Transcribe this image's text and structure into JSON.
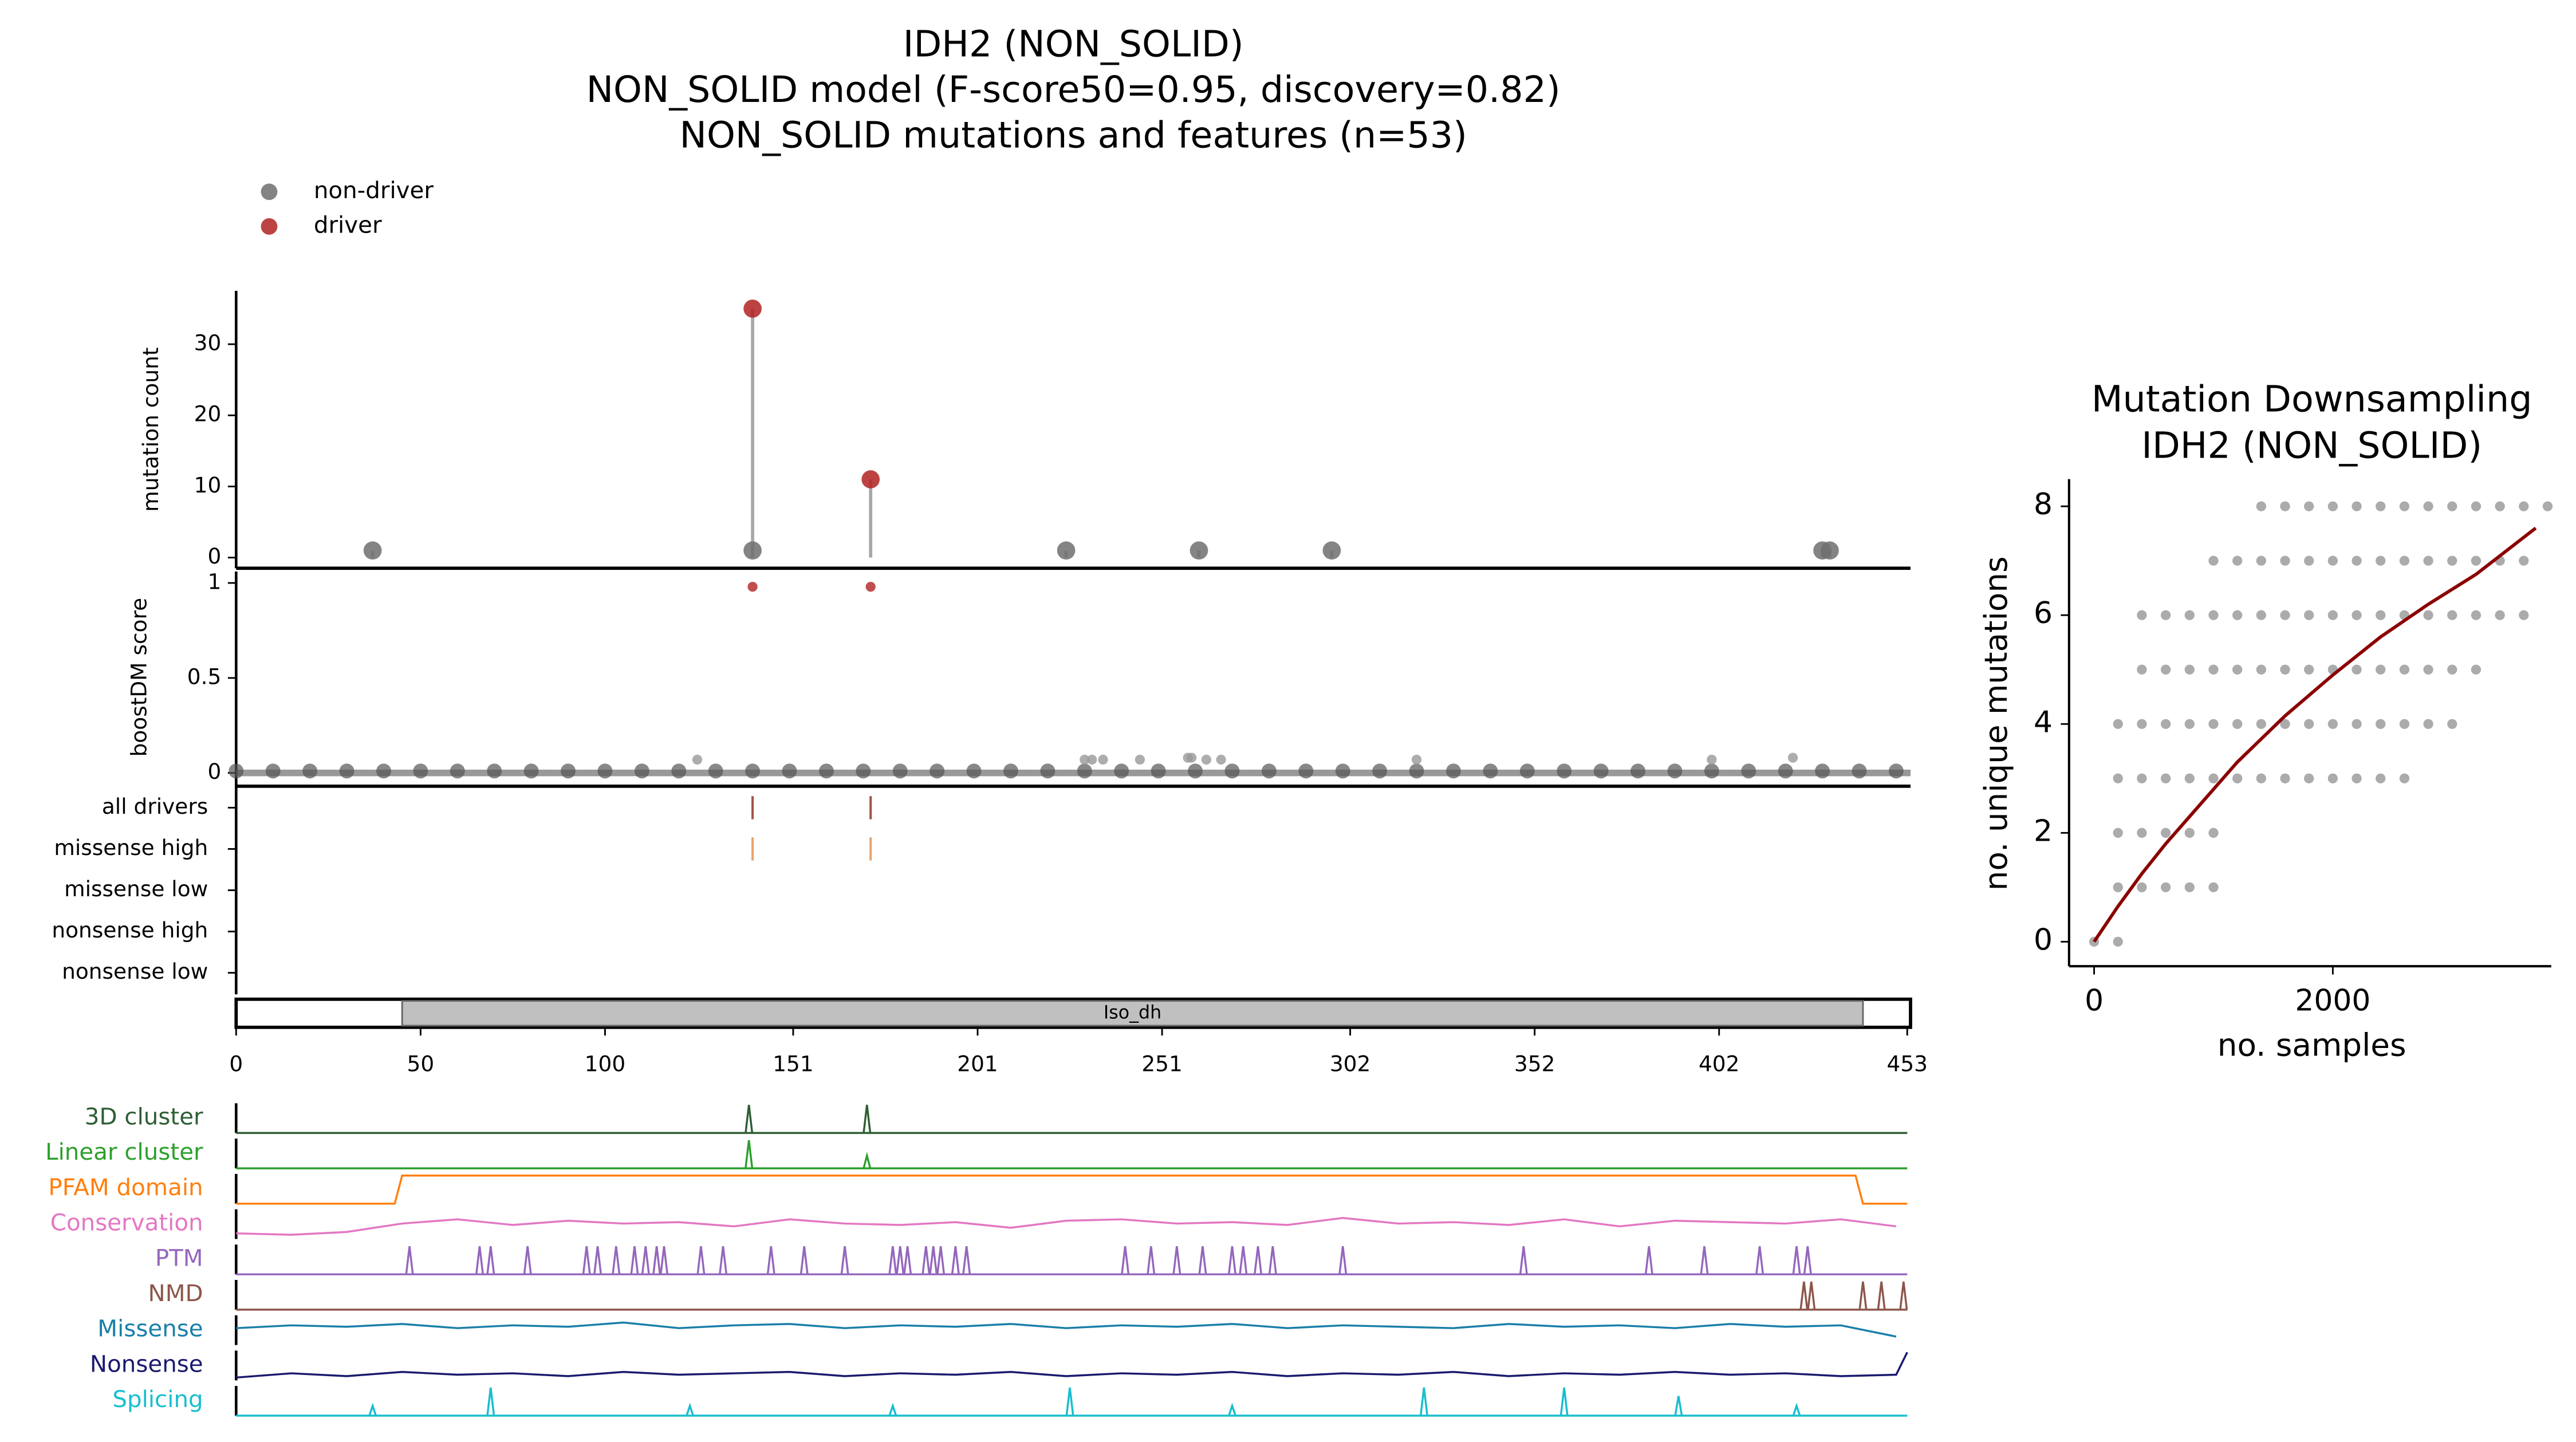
{
  "chart_data": [
    {
      "type": "lollipop",
      "title": [
        "IDH2 (NON_SOLID)",
        "NON_SOLID model (F-score50=0.95, discovery=0.82)",
        "NON_SOLID mutations and features (n=53)"
      ],
      "ylabel": "mutation count",
      "xlim": [
        0,
        453
      ],
      "ylim": [
        -1.5,
        37.5
      ],
      "yticks": [
        0,
        10,
        20,
        30
      ],
      "series": [
        {
          "name": "non-driver",
          "color": "#6e6e6e",
          "x": [
            37,
            140,
            225,
            261,
            297,
            430,
            432
          ],
          "values": [
            1,
            1,
            1,
            1,
            1,
            1,
            1
          ]
        },
        {
          "name": "driver",
          "color": "#b22222",
          "x": [
            140,
            172
          ],
          "values": [
            35,
            11
          ]
        }
      ]
    },
    {
      "type": "strip",
      "ylabel": "boostDM score",
      "xlim": [
        0,
        453
      ],
      "ylim": [
        -0.07,
        1.06
      ],
      "yticks": [
        0,
        0.5,
        1
      ],
      "series": [
        {
          "color": "#555555",
          "x": [
            0,
            10,
            20,
            30,
            40,
            50,
            60,
            70,
            80,
            90,
            100,
            110,
            120,
            130,
            140,
            150,
            160,
            170,
            180,
            190,
            200,
            210,
            220,
            230,
            240,
            250,
            260,
            270,
            280,
            290,
            300,
            310,
            320,
            330,
            340,
            350,
            360,
            370,
            380,
            390,
            400,
            410,
            420,
            430,
            440,
            450
          ],
          "values": [
            0.01,
            0.01,
            0.01,
            0.01,
            0.01,
            0.01,
            0.01,
            0.01,
            0.01,
            0.01,
            0.01,
            0.01,
            0.01,
            0.01,
            0.01,
            0.01,
            0.01,
            0.01,
            0.01,
            0.01,
            0.01,
            0.01,
            0.01,
            0.01,
            0.01,
            0.01,
            0.01,
            0.01,
            0.01,
            0.01,
            0.01,
            0.01,
            0.01,
            0.01,
            0.01,
            0.01,
            0.01,
            0.01,
            0.01,
            0.01,
            0.01,
            0.01,
            0.01,
            0.01,
            0.01,
            0.01
          ]
        },
        {
          "color": "#999999",
          "x": [
            125,
            230,
            232,
            235,
            245,
            258,
            259,
            263,
            267,
            320,
            400,
            422
          ],
          "values": [
            0.07,
            0.07,
            0.07,
            0.07,
            0.07,
            0.08,
            0.08,
            0.07,
            0.07,
            0.07,
            0.07,
            0.08
          ]
        },
        {
          "color": "#b22222",
          "x": [
            140,
            172
          ],
          "values": [
            0.98,
            0.98
          ]
        }
      ]
    },
    {
      "type": "tracks",
      "xlim": [
        0,
        453
      ],
      "categories": [
        "all drivers",
        "missense high",
        "missense low",
        "nonsense high",
        "nonsense low"
      ],
      "series": [
        {
          "color": "#a0524a",
          "x": [
            140,
            172
          ]
        },
        {
          "color": "#e8a36a",
          "x": [
            140,
            172
          ]
        }
      ]
    },
    {
      "type": "domain",
      "xlim": [
        0,
        453
      ],
      "xticks": [
        0,
        50,
        100,
        151,
        201,
        251,
        302,
        352,
        402,
        453
      ],
      "domains": [
        {
          "name": "Iso_dh",
          "start": 45,
          "end": 441,
          "color": "#c0c0c0"
        }
      ]
    },
    {
      "type": "profiles",
      "xlim": [
        0,
        453
      ],
      "series": [
        {
          "name": "3D cluster",
          "color": "#2e5e34",
          "style": "spike",
          "x": [
            139,
            171
          ],
          "values": [
            1,
            1
          ]
        },
        {
          "name": "Linear cluster",
          "color": "#2ca02c",
          "style": "spike",
          "x": [
            139,
            171
          ],
          "values": [
            1,
            0.45
          ]
        },
        {
          "name": "PFAM domain",
          "color": "#ff7f0e",
          "style": "line",
          "x": [
            0,
            43,
            45,
            439,
            441,
            453
          ],
          "values": [
            0,
            0,
            1,
            1,
            0,
            0
          ]
        },
        {
          "name": "Conservation",
          "color": "#e377c2",
          "style": "line",
          "x": [
            0,
            15,
            30,
            45,
            60,
            75,
            90,
            105,
            120,
            135,
            150,
            165,
            180,
            195,
            210,
            225,
            240,
            255,
            270,
            285,
            300,
            315,
            330,
            345,
            360,
            375,
            390,
            405,
            420,
            435,
            450
          ],
          "values": [
            0.2,
            0.15,
            0.25,
            0.55,
            0.7,
            0.5,
            0.65,
            0.55,
            0.6,
            0.45,
            0.7,
            0.55,
            0.5,
            0.6,
            0.4,
            0.65,
            0.7,
            0.55,
            0.6,
            0.5,
            0.75,
            0.55,
            0.6,
            0.5,
            0.7,
            0.45,
            0.65,
            0.6,
            0.55,
            0.7,
            0.45
          ]
        },
        {
          "name": "PTM",
          "color": "#9467bd",
          "style": "spike",
          "x": [
            47,
            66,
            69,
            79,
            95,
            98,
            103,
            108,
            111,
            114,
            116,
            126,
            132,
            145,
            154,
            165,
            178,
            180,
            182,
            187,
            189,
            191,
            195,
            198,
            241,
            248,
            255,
            262,
            270,
            273,
            277,
            281,
            300,
            349,
            383,
            398,
            413,
            423,
            426
          ],
          "values": [
            1,
            1,
            1,
            1,
            1,
            1,
            1,
            1,
            1,
            1,
            1,
            1,
            1,
            1,
            1,
            1,
            1,
            1,
            1,
            1,
            1,
            1,
            1,
            1,
            1,
            1,
            1,
            1,
            1,
            1,
            1,
            1,
            1,
            1,
            1,
            1,
            1,
            1,
            1
          ]
        },
        {
          "name": "NMD",
          "color": "#8c564b",
          "style": "spike",
          "x": [
            425,
            427,
            441,
            446,
            452
          ],
          "values": [
            1,
            1,
            1,
            1,
            1
          ]
        },
        {
          "name": "Missense",
          "color": "#1a7fa8",
          "style": "line",
          "x": [
            0,
            15,
            30,
            45,
            60,
            75,
            90,
            105,
            120,
            135,
            150,
            165,
            180,
            195,
            210,
            225,
            240,
            255,
            270,
            285,
            300,
            315,
            330,
            345,
            360,
            375,
            390,
            405,
            420,
            435,
            450
          ],
          "values": [
            0.6,
            0.7,
            0.65,
            0.75,
            0.6,
            0.7,
            0.65,
            0.8,
            0.6,
            0.7,
            0.75,
            0.6,
            0.7,
            0.65,
            0.75,
            0.6,
            0.7,
            0.65,
            0.75,
            0.6,
            0.7,
            0.65,
            0.6,
            0.75,
            0.65,
            0.7,
            0.6,
            0.75,
            0.65,
            0.7,
            0.3
          ]
        },
        {
          "name": "Nonsense",
          "color": "#1a1a6e",
          "style": "line",
          "x": [
            0,
            15,
            30,
            45,
            60,
            75,
            90,
            105,
            120,
            135,
            150,
            165,
            180,
            195,
            210,
            225,
            240,
            255,
            270,
            285,
            300,
            315,
            330,
            345,
            360,
            375,
            390,
            405,
            420,
            435,
            450,
            453
          ],
          "values": [
            0.1,
            0.25,
            0.15,
            0.3,
            0.2,
            0.25,
            0.15,
            0.3,
            0.2,
            0.25,
            0.3,
            0.15,
            0.25,
            0.2,
            0.3,
            0.15,
            0.25,
            0.2,
            0.3,
            0.15,
            0.25,
            0.2,
            0.3,
            0.15,
            0.25,
            0.2,
            0.3,
            0.2,
            0.25,
            0.15,
            0.2,
            1
          ]
        },
        {
          "name": "Splicing",
          "color": "#17becf",
          "style": "spike",
          "x": [
            37,
            69,
            123,
            178,
            226,
            270,
            322,
            360,
            391,
            423
          ],
          "values": [
            0.35,
            1,
            0.35,
            0.35,
            1,
            0.35,
            1,
            1,
            0.7,
            0.35
          ]
        }
      ]
    },
    {
      "type": "scatter",
      "title": [
        "Mutation Downsampling",
        "IDH2 (NON_SOLID)"
      ],
      "xlabel": "no. samples",
      "ylabel": "no. unique mutations",
      "xlim": [
        -210,
        3830
      ],
      "xticks": [
        0,
        2000
      ],
      "ylim": [
        -0.45,
        8.5
      ],
      "yticks": [
        0,
        2,
        4,
        6,
        8
      ],
      "series": [
        {
          "color": "#666666",
          "x": [
            0,
            200
          ],
          "values": [
            0,
            0
          ]
        },
        {
          "color": "#666666",
          "x": [
            200,
            400,
            600,
            800,
            1000
          ],
          "values": [
            1,
            1,
            1,
            1,
            1
          ]
        },
        {
          "color": "#666666",
          "x": [
            200,
            400,
            600,
            800,
            1000
          ],
          "values": [
            2,
            2,
            2,
            2,
            2
          ]
        },
        {
          "color": "#666666",
          "x": [
            200,
            400,
            600,
            800,
            1000,
            1200,
            1400,
            1600,
            1800,
            2000,
            2200,
            2400,
            2600
          ],
          "values": [
            3,
            3,
            3,
            3,
            3,
            3,
            3,
            3,
            3,
            3,
            3,
            3,
            3
          ]
        },
        {
          "color": "#666666",
          "x": [
            200,
            400,
            600,
            800,
            1000,
            1200,
            1400,
            1600,
            1800,
            2000,
            2200,
            2400,
            2600,
            2800,
            3000
          ],
          "values": [
            4,
            4,
            4,
            4,
            4,
            4,
            4,
            4,
            4,
            4,
            4,
            4,
            4,
            4,
            4
          ]
        },
        {
          "color": "#666666",
          "x": [
            400,
            600,
            800,
            1000,
            1200,
            1400,
            1600,
            1800,
            2000,
            2200,
            2400,
            2600,
            2800,
            3000,
            3200
          ],
          "values": [
            5,
            5,
            5,
            5,
            5,
            5,
            5,
            5,
            5,
            5,
            5,
            5,
            5,
            5,
            5
          ]
        },
        {
          "color": "#666666",
          "x": [
            400,
            600,
            800,
            1000,
            1200,
            1400,
            1600,
            1800,
            2000,
            2200,
            2400,
            2600,
            2800,
            3000,
            3200,
            3400,
            3600
          ],
          "values": [
            6,
            6,
            6,
            6,
            6,
            6,
            6,
            6,
            6,
            6,
            6,
            6,
            6,
            6,
            6,
            6,
            6
          ]
        },
        {
          "color": "#666666",
          "x": [
            1000,
            1200,
            1400,
            1600,
            1800,
            2000,
            2200,
            2400,
            2600,
            2800,
            3000,
            3200,
            3400,
            3600
          ],
          "values": [
            7,
            7,
            7,
            7,
            7,
            7,
            7,
            7,
            7,
            7,
            7,
            7,
            7,
            7
          ]
        },
        {
          "color": "#666666",
          "x": [
            1400,
            1600,
            1800,
            2000,
            2200,
            2400,
            2600,
            2800,
            3000,
            3200,
            3400,
            3600,
            3800
          ],
          "values": [
            8,
            8,
            8,
            8,
            8,
            8,
            8,
            8,
            8,
            8,
            8,
            8,
            8
          ]
        },
        {
          "color": "#8b0000",
          "style": "line",
          "x": [
            0,
            200,
            400,
            600,
            800,
            1200,
            1600,
            2000,
            2400,
            2800,
            3200,
            3700
          ],
          "values": [
            0,
            0.65,
            1.25,
            1.8,
            2.3,
            3.3,
            4.15,
            4.9,
            5.6,
            6.2,
            6.75,
            7.6
          ]
        }
      ]
    }
  ]
}
